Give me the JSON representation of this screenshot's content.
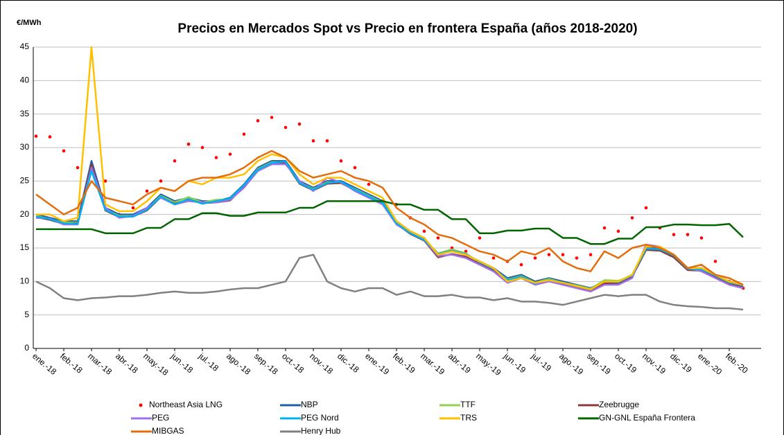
{
  "chart_data": {
    "type": "line",
    "title": "Precios en Mercados Spot vs Precio en frontera España (años 2018-2020)",
    "y_label": "€/MWh",
    "categories": [
      "ene.-18",
      null,
      "feb.-18",
      null,
      "mar.-18",
      null,
      "abr.-18",
      null,
      "may.-18",
      null,
      "jun.-18",
      null,
      "jul.-18",
      null,
      "ago.-18",
      null,
      "sep.-18",
      null,
      "oct.-18",
      null,
      "nov.-18",
      null,
      "dic.-18",
      null,
      "ene.-19",
      null,
      "feb.-19",
      null,
      "mar.-19",
      null,
      "abr.-19",
      null,
      "may.-19",
      null,
      "jun.-19",
      null,
      "jul.-19",
      null,
      "ago.-19",
      null,
      "sep.-19",
      null,
      "oct.-19",
      null,
      "nov.-19",
      null,
      "dic.-19",
      null,
      "ene.-20",
      null,
      "feb.-20",
      null
    ],
    "ylim": [
      0,
      45
    ],
    "yticks": [
      0,
      5,
      10,
      15,
      20,
      25,
      30,
      35,
      40,
      45
    ],
    "grid": true,
    "legend": "bottom",
    "series": [
      {
        "name": "Northeast Asia LNG",
        "color": "#ff0000",
        "marker": "dot",
        "values": [
          31.7,
          31.6,
          29.5,
          27,
          null,
          25,
          20,
          21,
          23.5,
          25,
          28,
          30.5,
          30,
          28.5,
          29,
          32,
          34,
          34.5,
          33,
          33.5,
          31,
          31,
          28,
          27,
          24.5,
          22,
          21.5,
          19.5,
          17.5,
          16.5,
          15,
          14.5,
          16.5,
          13.5,
          13,
          12.5,
          13.5,
          14,
          14,
          13.5,
          14,
          18,
          17.5,
          19.5,
          21,
          18,
          17,
          17,
          16.5,
          13,
          10,
          9
        ]
      },
      {
        "name": "NBP",
        "color": "#1f5fa8",
        "values": [
          20,
          19.5,
          19,
          19,
          28,
          21,
          20,
          20,
          21,
          23,
          22,
          22.5,
          22,
          22,
          22.5,
          24.5,
          27,
          28,
          28,
          25,
          24,
          25,
          25,
          24,
          23,
          22,
          19,
          17.5,
          16.5,
          14,
          14.5,
          14,
          13,
          12,
          10.5,
          11,
          10,
          10.5,
          10,
          9.5,
          9,
          10,
          10,
          11,
          15,
          15,
          14,
          12,
          12,
          11,
          10,
          9.5
        ]
      },
      {
        "name": "TTF",
        "color": "#92d050",
        "values": [
          19.8,
          19.3,
          18.8,
          18.8,
          27,
          20.8,
          19.8,
          19.8,
          20.8,
          22.8,
          21.8,
          22.6,
          21.8,
          22.2,
          22.3,
          24.3,
          26.8,
          27.8,
          27.8,
          24.8,
          23.8,
          24.8,
          24.8,
          23.8,
          22.8,
          21.8,
          18.8,
          17.3,
          16.3,
          14.2,
          14.8,
          14.2,
          12.8,
          11.8,
          10.3,
          10.8,
          9.8,
          10.4,
          9.8,
          9.4,
          8.9,
          10.2,
          10.1,
          10.8,
          14.8,
          14.7,
          13.8,
          11.8,
          11.8,
          10.8,
          9.8,
          9.3
        ]
      },
      {
        "name": "Zeebrugge",
        "color": "#8b3a3a",
        "values": [
          19.6,
          19.2,
          18.6,
          18.7,
          27.5,
          20.6,
          19.6,
          19.7,
          20.6,
          22.6,
          21.6,
          22.2,
          21.7,
          21.8,
          22.1,
          24.2,
          26.6,
          27.6,
          27.7,
          24.6,
          23.6,
          24.6,
          24.7,
          23.6,
          22.6,
          21.6,
          18.6,
          17.1,
          16.1,
          13.6,
          14.1,
          13.7,
          12.6,
          11.6,
          10.1,
          10.6,
          9.6,
          10.1,
          9.7,
          9.2,
          8.7,
          9.7,
          9.7,
          10.7,
          14.7,
          14.6,
          13.6,
          11.7,
          11.6,
          10.6,
          9.6,
          9.2
        ]
      },
      {
        "name": "PEG",
        "color": "#a070e8",
        "values": [
          19.5,
          19.4,
          18.5,
          18.5,
          27,
          21,
          19.5,
          19.8,
          21,
          22.5,
          21.5,
          22,
          21.8,
          21.8,
          22.2,
          24,
          26.5,
          27.5,
          27.5,
          25,
          23.5,
          25.5,
          24.8,
          23.5,
          22.5,
          21.5,
          18.5,
          17.2,
          16.2,
          13.8,
          14,
          13.5,
          12.5,
          11.5,
          9.8,
          10.5,
          9.5,
          10,
          9.5,
          9,
          8.5,
          9.5,
          9.5,
          10.5,
          15.5,
          15.2,
          14,
          12,
          11.5,
          10.5,
          9.5,
          9
        ]
      },
      {
        "name": "PEG Nord",
        "color": "#00b0f0",
        "values": [
          19.7,
          19.3,
          18.7,
          18.6,
          26.5,
          20.7,
          19.7,
          19.7,
          20.7,
          22.7,
          21.5,
          22.3,
          21.6,
          22,
          22.4,
          24.4,
          26.7,
          27.7,
          27.9,
          24.7,
          23.7,
          24.7,
          24.9,
          23.7,
          22.7,
          21.7,
          18.7,
          17.2,
          16.2,
          14.1,
          14.6,
          14.1,
          12.9,
          11.9,
          10.2,
          10.7,
          9.7,
          10.3,
          9.8,
          9.3,
          8.8,
          10,
          9.9,
          10.9,
          14.9,
          14.8,
          13.9,
          11.9,
          11.8,
          10.9,
          9.9,
          9.4
        ]
      },
      {
        "name": "TRS",
        "color": "#ffc000",
        "values": [
          20,
          20,
          19,
          19.5,
          45,
          21.5,
          20.5,
          20.5,
          22,
          24,
          23.5,
          25,
          24.5,
          25.5,
          25.5,
          26,
          28,
          29,
          28.5,
          26,
          24.5,
          25.5,
          25.5,
          24.5,
          23.5,
          22.5,
          19,
          17.5,
          16.5,
          14,
          14.5,
          14,
          13,
          12,
          10,
          10.5,
          9.8,
          10.2,
          9.8,
          9.3,
          8.8,
          10,
          10,
          11,
          15.2,
          15.2,
          14,
          12,
          12,
          11,
          10,
          9.5
        ]
      },
      {
        "name": "GN-GNL España Frontera",
        "color": "#006400",
        "values": [
          17.8,
          17.8,
          17.8,
          17.8,
          17.8,
          17.2,
          17.2,
          17.2,
          18,
          18,
          19.3,
          19.3,
          20.2,
          20.2,
          19.8,
          19.8,
          20.3,
          20.3,
          20.3,
          21,
          21,
          22,
          22,
          22,
          22,
          22,
          21.5,
          21.5,
          20.7,
          20.7,
          19.3,
          19.3,
          17.2,
          17.2,
          17.6,
          17.6,
          17.9,
          17.9,
          16.5,
          16.5,
          15.6,
          15.6,
          16.4,
          16.4,
          18.1,
          18.1,
          18.5,
          18.5,
          18.4,
          18.4,
          18.6,
          16.6
        ]
      },
      {
        "name": "MIBGAS",
        "color": "#e46c0a",
        "values": [
          23,
          21.5,
          20,
          21,
          25,
          22.5,
          22,
          21.5,
          23,
          24,
          23.5,
          25,
          25.5,
          25.5,
          26,
          27,
          28.5,
          29.5,
          28.5,
          26.5,
          25.5,
          26,
          26.5,
          25.5,
          25,
          24,
          21,
          19.5,
          18.5,
          17,
          16.5,
          15.5,
          14.5,
          14,
          13,
          14.5,
          14,
          15,
          13,
          12,
          11.5,
          14.5,
          13.5,
          15,
          15.5,
          15,
          14,
          12,
          12.5,
          11,
          10.5,
          9.5
        ]
      },
      {
        "name": "Henry Hub",
        "color": "#808080",
        "values": [
          10,
          9,
          7.5,
          7.2,
          7.5,
          7.6,
          7.8,
          7.8,
          8,
          8.3,
          8.5,
          8.3,
          8.3,
          8.5,
          8.8,
          9,
          9,
          9.5,
          10,
          13.5,
          14,
          10,
          9,
          8.5,
          9,
          9,
          8,
          8.5,
          7.8,
          7.8,
          8,
          7.6,
          7.6,
          7.2,
          7.5,
          7,
          7,
          6.8,
          6.5,
          7,
          7.5,
          8,
          7.8,
          8,
          8,
          7,
          6.5,
          6.3,
          6.2,
          6,
          6,
          5.8
        ]
      }
    ]
  }
}
